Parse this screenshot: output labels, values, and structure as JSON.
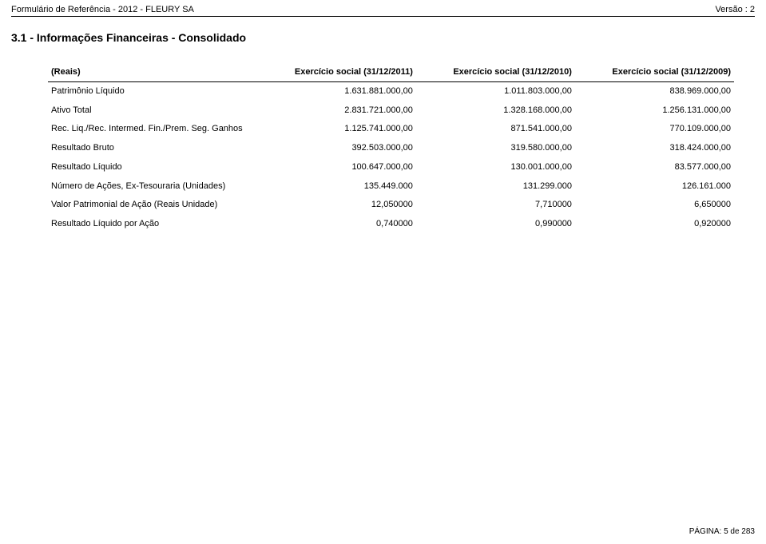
{
  "header": {
    "left": "Formulário de Referência - 2012 - FLEURY SA",
    "right": "Versão : 2"
  },
  "section_title": "3.1 - Informações Financeiras - Consolidado",
  "table": {
    "head": {
      "c0": "(Reais)",
      "c1": "Exercício social (31/12/2011)",
      "c2": "Exercício social (31/12/2010)",
      "c3": "Exercício social (31/12/2009)"
    },
    "rows": [
      {
        "label": "Patrimônio Líquido",
        "v1": "1.631.881.000,00",
        "v2": "1.011.803.000,00",
        "v3": "838.969.000,00"
      },
      {
        "label": "Ativo Total",
        "v1": "2.831.721.000,00",
        "v2": "1.328.168.000,00",
        "v3": "1.256.131.000,00"
      },
      {
        "label": "Rec. Liq./Rec. Intermed. Fin./Prem. Seg. Ganhos",
        "v1": "1.125.741.000,00",
        "v2": "871.541.000,00",
        "v3": "770.109.000,00"
      },
      {
        "label": "Resultado Bruto",
        "v1": "392.503.000,00",
        "v2": "319.580.000,00",
        "v3": "318.424.000,00"
      },
      {
        "label": "Resultado Líquido",
        "v1": "100.647.000,00",
        "v2": "130.001.000,00",
        "v3": "83.577.000,00"
      },
      {
        "label": "Número de Ações, Ex-Tesouraria (Unidades)",
        "v1": "135.449.000",
        "v2": "131.299.000",
        "v3": "126.161.000"
      },
      {
        "label": "Valor Patrimonial de Ação (Reais Unidade)",
        "v1": "12,050000",
        "v2": "7,710000",
        "v3": "6,650000"
      },
      {
        "label": "Resultado Líquido por Ação",
        "v1": "0,740000",
        "v2": "0,990000",
        "v3": "0,920000"
      }
    ]
  },
  "footer": "PÁGINA: 5 de 283"
}
